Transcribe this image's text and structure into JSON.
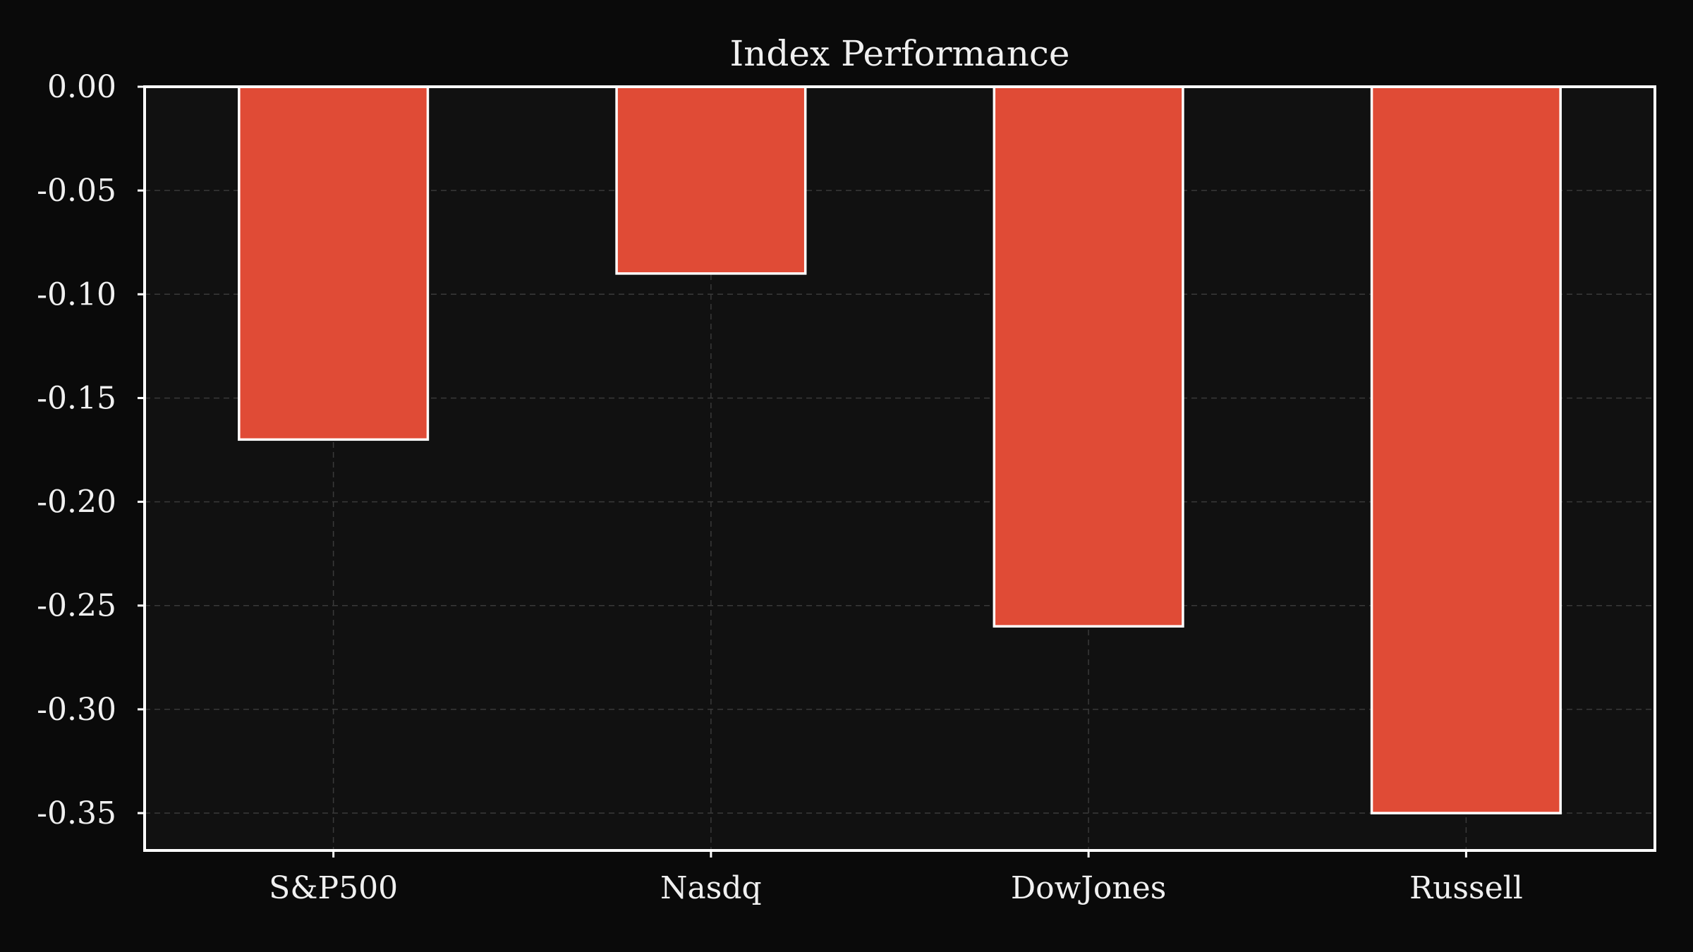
{
  "chart_data": {
    "type": "bar",
    "title": "Index Performance",
    "categories": [
      "S&P500",
      "Nasdq",
      "DowJones",
      "Russell"
    ],
    "values": [
      -0.17,
      -0.09,
      -0.26,
      -0.35
    ],
    "xlabel": "",
    "ylabel": "",
    "ylim": [
      -0.368,
      0.0
    ],
    "yticks": [
      "0.00",
      "-0.05",
      "-0.10",
      "-0.15",
      "-0.20",
      "-0.25",
      "-0.30",
      "-0.35"
    ],
    "grid": true,
    "colors": {
      "bar": "#e04b36",
      "bar_edge": "#ffffff",
      "background": "#0a0a0a",
      "plot_background": "#111111"
    }
  }
}
